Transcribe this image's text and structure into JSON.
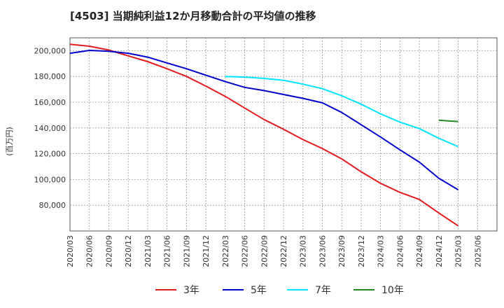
{
  "chart_data": {
    "type": "line",
    "title": "[4503]  当期純利益12か月移動合計の平均値の推移",
    "ylabel": "(百万円)",
    "xlabel": "",
    "ylim": [
      60000,
      210000
    ],
    "yticks": [
      80000,
      100000,
      120000,
      140000,
      160000,
      180000,
      200000
    ],
    "ytick_labels": [
      "80,000",
      "100,000",
      "120,000",
      "140,000",
      "160,000",
      "180,000",
      "200,000"
    ],
    "x_tick_labels": [
      "2020/03",
      "2020/06",
      "2020/09",
      "2020/12",
      "2021/03",
      "2021/06",
      "2021/09",
      "2021/12",
      "2022/03",
      "2022/06",
      "2022/09",
      "2022/12",
      "2023/03",
      "2023/06",
      "2023/09",
      "2023/12",
      "2024/03",
      "2024/06",
      "2024/09",
      "2024/12",
      "2025/03",
      "2025/06"
    ],
    "grid": true,
    "legend_position": "bottom",
    "series": [
      {
        "name": "3年",
        "color": "#e31a1c",
        "points": [
          [
            "2020/03",
            205000
          ],
          [
            "2020/06",
            203500
          ],
          [
            "2020/09",
            200500
          ],
          [
            "2020/12",
            196000
          ],
          [
            "2021/03",
            191500
          ],
          [
            "2021/06",
            186000
          ],
          [
            "2021/09",
            180000
          ],
          [
            "2021/12",
            172500
          ],
          [
            "2022/03",
            164500
          ],
          [
            "2022/06",
            155500
          ],
          [
            "2022/09",
            146500
          ],
          [
            "2022/12",
            139000
          ],
          [
            "2023/03",
            131000
          ],
          [
            "2023/06",
            124000
          ],
          [
            "2023/09",
            116000
          ],
          [
            "2023/12",
            106000
          ],
          [
            "2024/03",
            97000
          ],
          [
            "2024/06",
            90000
          ],
          [
            "2024/09",
            84500
          ],
          [
            "2024/12",
            74000
          ],
          [
            "2025/03",
            64000
          ]
        ]
      },
      {
        "name": "5年",
        "color": "#0000cc",
        "points": [
          [
            "2020/03",
            198000
          ],
          [
            "2020/06",
            200200
          ],
          [
            "2020/09",
            199500
          ],
          [
            "2020/12",
            198000
          ],
          [
            "2021/03",
            195000
          ],
          [
            "2021/06",
            190500
          ],
          [
            "2021/09",
            186000
          ],
          [
            "2021/12",
            181000
          ],
          [
            "2022/03",
            176000
          ],
          [
            "2022/06",
            171500
          ],
          [
            "2022/09",
            169000
          ],
          [
            "2022/12",
            166000
          ],
          [
            "2023/03",
            163000
          ],
          [
            "2023/06",
            159500
          ],
          [
            "2023/09",
            152000
          ],
          [
            "2023/12",
            142500
          ],
          [
            "2024/03",
            133000
          ],
          [
            "2024/06",
            123000
          ],
          [
            "2024/09",
            113500
          ],
          [
            "2024/12",
            101000
          ],
          [
            "2025/03",
            92000
          ]
        ]
      },
      {
        "name": "7年",
        "color": "#00e5ff",
        "points": [
          [
            "2022/03",
            180000
          ],
          [
            "2022/06",
            179500
          ],
          [
            "2022/09",
            178500
          ],
          [
            "2022/12",
            177000
          ],
          [
            "2023/03",
            174000
          ],
          [
            "2023/06",
            170500
          ],
          [
            "2023/09",
            165000
          ],
          [
            "2023/12",
            158500
          ],
          [
            "2024/03",
            151000
          ],
          [
            "2024/06",
            144500
          ],
          [
            "2024/09",
            139500
          ],
          [
            "2024/12",
            132000
          ],
          [
            "2025/03",
            125500
          ]
        ]
      },
      {
        "name": "10年",
        "color": "#228b22",
        "points": [
          [
            "2024/12",
            146000
          ],
          [
            "2025/03",
            145000
          ]
        ]
      }
    ]
  }
}
